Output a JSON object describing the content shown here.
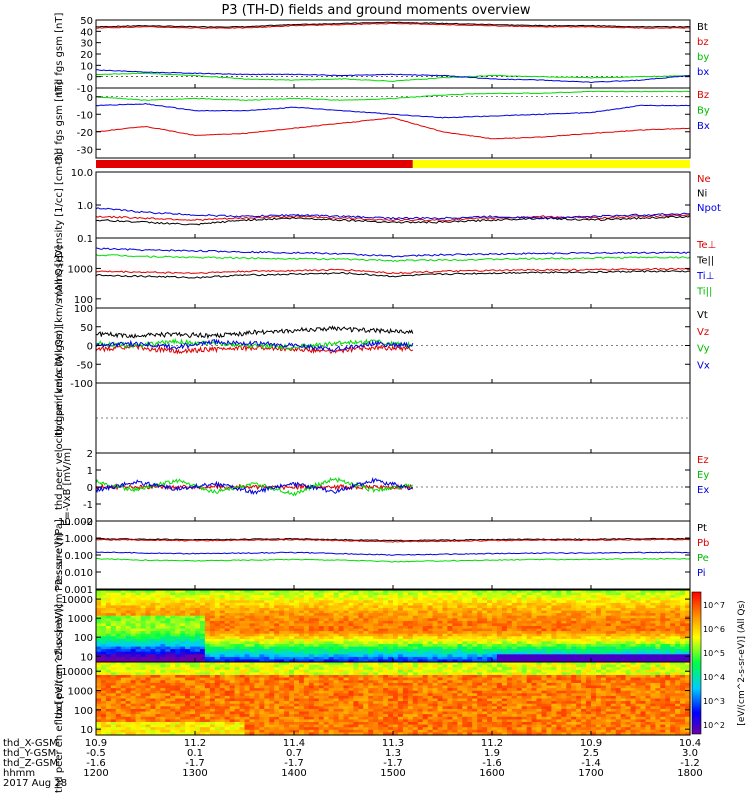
{
  "title": "P3 (TH-D) fields and ground moments overview",
  "date_label": "2017 Aug 28",
  "time_axis": {
    "rows": [
      {
        "label": "thd_X-GSM",
        "values": [
          "10.9",
          "11.2",
          "11.4",
          "11.3",
          "11.2",
          "10.9",
          "10.4"
        ]
      },
      {
        "label": "thd_Y-GSM",
        "values": [
          "-0.5",
          "0.1",
          "0.7",
          "1.3",
          "1.9",
          "2.5",
          "3.0"
        ]
      },
      {
        "label": "thd_Z-GSM",
        "values": [
          "-1.6",
          "-1.7",
          "-1.7",
          "-1.7",
          "-1.6",
          "-1.4",
          "-1.2"
        ]
      },
      {
        "label": "hhmm",
        "values": [
          "1200",
          "1300",
          "1400",
          "1500",
          "1600",
          "1700",
          "1800"
        ]
      }
    ]
  },
  "colorbar_label": "[eV/(cm^2-s-sr-eV)] (All Qs)",
  "colorbar_ticks": [
    "10^2",
    "10^3",
    "10^4",
    "10^5",
    "10^6",
    "10^7"
  ],
  "mode_bar": {
    "colors": [
      "#e00000",
      "#ffff00"
    ],
    "split_hour": 15.2
  },
  "colors": {
    "black": "#000000",
    "red": "#e00000",
    "green": "#00dd00",
    "blue": "#0000e0"
  },
  "chart_data": [
    {
      "type": "line",
      "ylabel": "thd fgs gsm [nT]",
      "ylim": [
        -10,
        50
      ],
      "yticks": [
        "50",
        "40",
        "30",
        "20",
        "10",
        "0",
        "-10"
      ],
      "series": [
        {
          "name": "Bt",
          "color": "#000000",
          "values": [
            44,
            45,
            44,
            44,
            46,
            47,
            48,
            47,
            46,
            45,
            45,
            44,
            44
          ]
        },
        {
          "name": "bz",
          "color": "#e00000",
          "values": [
            43,
            44,
            43,
            43,
            45,
            46,
            47,
            46,
            45,
            44,
            44,
            43,
            43
          ]
        },
        {
          "name": "by",
          "color": "#00dd00",
          "values": [
            2,
            3,
            1,
            -2,
            -3,
            -2,
            -4,
            -1,
            1,
            0,
            -1,
            0,
            1
          ]
        },
        {
          "name": "bx",
          "color": "#0000e0",
          "values": [
            6,
            4,
            3,
            2,
            2,
            1,
            2,
            1,
            -2,
            -3,
            -5,
            -3,
            1
          ]
        }
      ]
    },
    {
      "type": "line",
      "ylabel": "thd fgs gsm [nT]",
      "ylim": [
        -35,
        5
      ],
      "yticks": [
        "0",
        "-10",
        "-20",
        "-30"
      ],
      "series": [
        {
          "name": "Bz",
          "color": "#e00000",
          "values": [
            -20,
            -17,
            -22,
            -21,
            -18,
            -15,
            -12,
            -20,
            -24,
            -23,
            -21,
            -19,
            -18
          ]
        },
        {
          "name": "By",
          "color": "#00dd00",
          "values": [
            0,
            -2,
            -1,
            -2,
            -1,
            -2,
            -1,
            1,
            2,
            2,
            3,
            3,
            3
          ]
        },
        {
          "name": "Bx",
          "color": "#0000e0",
          "values": [
            -5,
            -4,
            -8,
            -8,
            -6,
            -8,
            -10,
            -12,
            -11,
            -10,
            -9,
            -5,
            -5
          ]
        }
      ]
    },
    {
      "type": "line",
      "ylabel": "Density [1/cc] [cm-3]",
      "log": true,
      "ylim": [
        0.1,
        10
      ],
      "yticks": [
        "10.0",
        "1.0",
        "0.1"
      ],
      "series": [
        {
          "name": "Ne",
          "color": "#e00000",
          "values": [
            0.45,
            0.4,
            0.35,
            0.4,
            0.45,
            0.4,
            0.35,
            0.35,
            0.4,
            0.45,
            0.4,
            0.45,
            0.5
          ]
        },
        {
          "name": "Ni",
          "color": "#000000",
          "values": [
            0.35,
            0.3,
            0.25,
            0.35,
            0.4,
            0.35,
            0.3,
            0.3,
            0.35,
            0.4,
            0.35,
            0.4,
            0.45
          ]
        },
        {
          "name": "Npot",
          "color": "#0000e0",
          "values": [
            0.8,
            0.6,
            0.5,
            0.45,
            0.5,
            0.45,
            0.4,
            0.4,
            0.45,
            0.4,
            0.45,
            0.5,
            0.55
          ]
        }
      ]
    },
    {
      "type": "line",
      "ylabel": "moms [eV]",
      "log": true,
      "ylim": [
        50,
        10000
      ],
      "yticks": [
        "1000",
        "100"
      ],
      "series": [
        {
          "name": "Te⊥",
          "color": "#e00000",
          "values": [
            800,
            750,
            700,
            800,
            850,
            900,
            700,
            800,
            850,
            900,
            900,
            950,
            950
          ]
        },
        {
          "name": "Te||",
          "color": "#000000",
          "values": [
            600,
            550,
            500,
            600,
            650,
            700,
            550,
            650,
            700,
            750,
            750,
            800,
            800
          ]
        },
        {
          "name": "Ti⊥",
          "color": "#0000e0",
          "values": [
            4500,
            4000,
            3800,
            3500,
            3300,
            3000,
            2500,
            2800,
            3000,
            3100,
            3200,
            3300,
            3300
          ]
        },
        {
          "name": "Ti||",
          "color": "#00dd00",
          "values": [
            2800,
            2500,
            2300,
            2200,
            2100,
            2000,
            1800,
            1900,
            2000,
            2100,
            2200,
            2300,
            2300
          ]
        }
      ]
    },
    {
      "type": "line",
      "ylabel": "thd peir velocity gsm [km/s (All Qs)]",
      "ylim": [
        -100,
        100
      ],
      "yticks": [
        "100",
        "50",
        "0",
        "-50",
        "-100"
      ],
      "series": [
        {
          "name": "Vt",
          "color": "#000000",
          "values": [
            30,
            25,
            30,
            25,
            35,
            40,
            45,
            40,
            35
          ]
        },
        {
          "name": "Vz",
          "color": "#e00000",
          "values": [
            -10,
            -5,
            -15,
            -10,
            -5,
            -10,
            -15,
            -5,
            -10
          ]
        },
        {
          "name": "Vy",
          "color": "#00dd00",
          "values": [
            5,
            0,
            10,
            5,
            0,
            -5,
            5,
            10,
            0
          ]
        },
        {
          "name": "Vx",
          "color": "#0000e0",
          "values": [
            0,
            5,
            -5,
            10,
            5,
            0,
            -10,
            5,
            0
          ]
        }
      ]
    },
    {
      "type": "line",
      "ylabel": "thd peer velocity gsm [km/s (All Qs)]",
      "ylim": [
        -100,
        100
      ],
      "yticks": [],
      "series": [
        {
          "name": "Vt",
          "color": "#000000",
          "values": []
        },
        {
          "name": "Vz",
          "color": "#e00000",
          "values": []
        },
        {
          "name": "Vy",
          "color": "#00dd00",
          "values": []
        },
        {
          "name": "Vx",
          "color": "#0000e0",
          "values": []
        }
      ]
    },
    {
      "type": "line",
      "ylabel": "E=-VxB [mV/m]",
      "ylim": [
        -2,
        2
      ],
      "yticks": [
        "2",
        "1",
        "0",
        "-1",
        "-2"
      ],
      "series": [
        {
          "name": "Ez",
          "color": "#e00000",
          "values": [
            0,
            0,
            0,
            0,
            0,
            0,
            0,
            0,
            0
          ]
        },
        {
          "name": "Ey",
          "color": "#00dd00",
          "values": [
            0.3,
            -0.2,
            0.4,
            -0.3,
            0.2,
            -0.4,
            0.5,
            -0.2,
            0.1
          ]
        },
        {
          "name": "Ex",
          "color": "#0000e0",
          "values": [
            -0.2,
            0.3,
            -0.1,
            0.2,
            -0.3,
            0.2,
            -0.3,
            0.4,
            -0.1
          ]
        }
      ]
    },
    {
      "type": "line",
      "ylabel": "Pressure [nPa]",
      "log": true,
      "ylim": [
        0.001,
        10
      ],
      "yticks": [
        "10.000",
        "1.000",
        "0.100",
        "0.010",
        "0.001"
      ],
      "series": [
        {
          "name": "Pt",
          "color": "#000000",
          "values": [
            0.9,
            0.85,
            0.8,
            0.85,
            0.9,
            0.8,
            0.7,
            0.75,
            0.8,
            0.85,
            0.85,
            0.9,
            0.9
          ]
        },
        {
          "name": "Pb",
          "color": "#e00000",
          "values": [
            0.8,
            0.75,
            0.7,
            0.75,
            0.8,
            0.7,
            0.6,
            0.65,
            0.7,
            0.75,
            0.75,
            0.8,
            0.8
          ]
        },
        {
          "name": "Pe",
          "color": "#00dd00",
          "values": [
            0.06,
            0.05,
            0.045,
            0.05,
            0.055,
            0.05,
            0.04,
            0.045,
            0.05,
            0.055,
            0.055,
            0.06,
            0.06
          ]
        },
        {
          "name": "Pi",
          "color": "#0000e0",
          "values": [
            0.15,
            0.13,
            0.12,
            0.13,
            0.14,
            0.12,
            0.1,
            0.11,
            0.12,
            0.13,
            0.13,
            0.14,
            0.14
          ]
        }
      ]
    },
    {
      "type": "heatmap",
      "ylabel": "thd peir en eflux [eV/(cm^2-s-sr-eV)]",
      "log": true,
      "ylim": [
        5,
        30000
      ],
      "yticks": [
        "10000",
        "1000",
        "100",
        "10"
      ]
    },
    {
      "type": "heatmap",
      "ylabel": "thd peer en eflux [eV/(cm^2-s-sr-eV)]",
      "log": true,
      "ylim": [
        5,
        30000
      ],
      "yticks": [
        "10000",
        "1000",
        "100",
        "10"
      ]
    }
  ]
}
